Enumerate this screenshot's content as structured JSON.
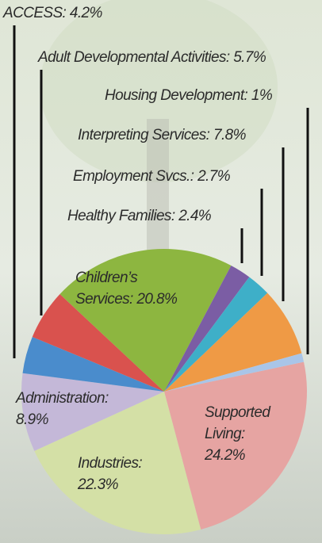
{
  "chart_data": {
    "type": "pie",
    "values": [
      24.2,
      22.3,
      8.9,
      4.2,
      5.7,
      20.8,
      2.4,
      2.7,
      7.8,
      1
    ],
    "value_labels": [
      "Supported\nLiving:\n24.2%",
      "Industries:\n22.3%",
      "Administration:\n8.9%",
      "ACCESS: 4.2%",
      "Adult Developmental Activities: 5.7%",
      "Children’s\nServices: 20.8%",
      "Healthy Families: 2.4%",
      "Employment Svcs.: 2.7%",
      "Interpreting Services: 7.8%",
      "Housing Development: 1%"
    ],
    "colors": [
      "#e6a4a2",
      "#d4e0a6",
      "#c4b8d8",
      "#4a8ccc",
      "#d9524e",
      "#8db640",
      "#7b5da4",
      "#3eafc8",
      "#ef9a45",
      "#a9c5e8"
    ]
  }
}
